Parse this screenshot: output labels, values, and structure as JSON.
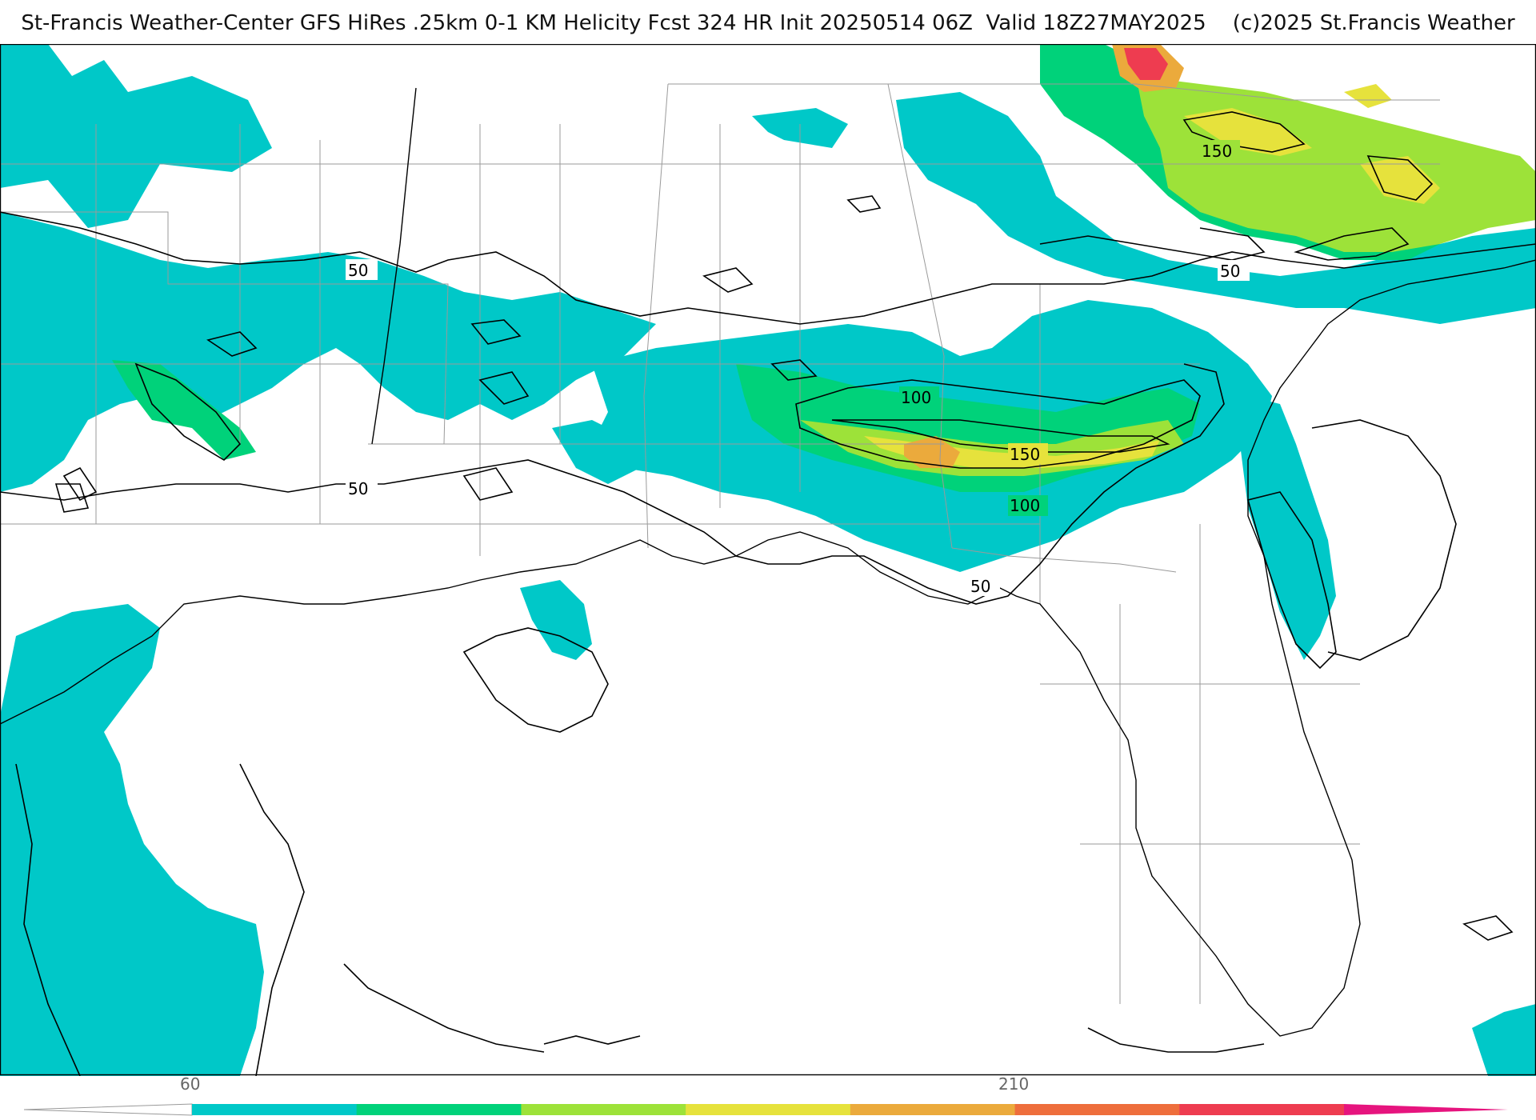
{
  "title": "St-Francis Weather-Center GFS HiRes .25km 0-1 KM Helicity Fcst 324 HR Init 20250514 06Z  Valid 18Z27MAY2025    (c)2025 St.Francis Weather",
  "contour_labels": [
    "50",
    "50",
    "50",
    "50",
    "100",
    "150",
    "100",
    "150"
  ],
  "colorbar": {
    "tick_labels": [
      "60",
      "210"
    ],
    "colors": [
      "#00c8c8",
      "#00d27a",
      "#9de239",
      "#e6e23c",
      "#ebaa3c",
      "#ee6e3c",
      "#ee3c50",
      "#e6147e"
    ]
  },
  "fill_colors": {
    "cyan": "#00c8c8",
    "green": "#00d27a",
    "lime": "#9de239",
    "yellow": "#e6e23c",
    "orange": "#ebaa3c",
    "red": "#ee3c50"
  }
}
